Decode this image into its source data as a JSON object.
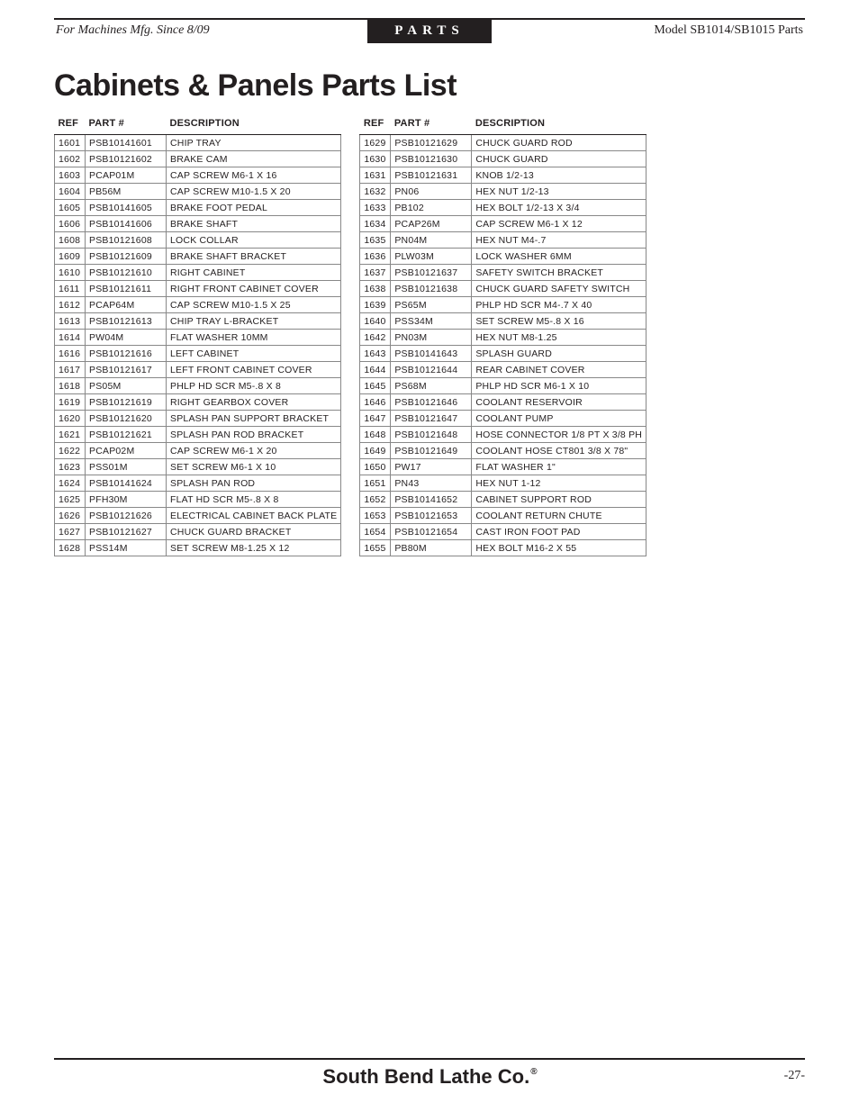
{
  "header": {
    "left": "For Machines Mfg. Since 8/09",
    "center": "PARTS",
    "right": "Model SB1014/SB1015 Parts"
  },
  "title": "Cabinets & Panels Parts List",
  "columns": {
    "ref": "REF",
    "part": "PART #",
    "desc": "DESCRIPTION"
  },
  "left_table": [
    {
      "ref": "1601",
      "part": "PSB10141601",
      "desc": "CHIP TRAY"
    },
    {
      "ref": "1602",
      "part": "PSB10121602",
      "desc": "BRAKE CAM"
    },
    {
      "ref": "1603",
      "part": "PCAP01M",
      "desc": "CAP SCREW M6-1 X 16"
    },
    {
      "ref": "1604",
      "part": "PB56M",
      "desc": "CAP SCREW M10-1.5 X 20"
    },
    {
      "ref": "1605",
      "part": "PSB10141605",
      "desc": "BRAKE FOOT PEDAL"
    },
    {
      "ref": "1606",
      "part": "PSB10141606",
      "desc": "BRAKE SHAFT"
    },
    {
      "ref": "1608",
      "part": "PSB10121608",
      "desc": "LOCK COLLAR"
    },
    {
      "ref": "1609",
      "part": "PSB10121609",
      "desc": "BRAKE SHAFT BRACKET"
    },
    {
      "ref": "1610",
      "part": "PSB10121610",
      "desc": "RIGHT CABINET"
    },
    {
      "ref": "1611",
      "part": "PSB10121611",
      "desc": "RIGHT FRONT CABINET COVER"
    },
    {
      "ref": "1612",
      "part": "PCAP64M",
      "desc": "CAP SCREW M10-1.5 X 25"
    },
    {
      "ref": "1613",
      "part": "PSB10121613",
      "desc": "CHIP TRAY L-BRACKET"
    },
    {
      "ref": "1614",
      "part": "PW04M",
      "desc": "FLAT WASHER 10MM"
    },
    {
      "ref": "1616",
      "part": "PSB10121616",
      "desc": "LEFT CABINET"
    },
    {
      "ref": "1617",
      "part": "PSB10121617",
      "desc": "LEFT FRONT CABINET COVER"
    },
    {
      "ref": "1618",
      "part": "PS05M",
      "desc": "PHLP HD SCR M5-.8 X 8"
    },
    {
      "ref": "1619",
      "part": "PSB10121619",
      "desc": "RIGHT GEARBOX COVER"
    },
    {
      "ref": "1620",
      "part": "PSB10121620",
      "desc": "SPLASH PAN SUPPORT BRACKET"
    },
    {
      "ref": "1621",
      "part": "PSB10121621",
      "desc": "SPLASH PAN ROD BRACKET"
    },
    {
      "ref": "1622",
      "part": "PCAP02M",
      "desc": "CAP SCREW M6-1 X 20"
    },
    {
      "ref": "1623",
      "part": "PSS01M",
      "desc": "SET SCREW M6-1 X 10"
    },
    {
      "ref": "1624",
      "part": "PSB10141624",
      "desc": "SPLASH PAN ROD"
    },
    {
      "ref": "1625",
      "part": "PFH30M",
      "desc": "FLAT HD SCR M5-.8 X 8"
    },
    {
      "ref": "1626",
      "part": "PSB10121626",
      "desc": "ELECTRICAL CABINET BACK PLATE"
    },
    {
      "ref": "1627",
      "part": "PSB10121627",
      "desc": "CHUCK GUARD BRACKET"
    },
    {
      "ref": "1628",
      "part": "PSS14M",
      "desc": "SET SCREW M8-1.25 X 12"
    }
  ],
  "right_table": [
    {
      "ref": "1629",
      "part": "PSB10121629",
      "desc": "CHUCK GUARD ROD"
    },
    {
      "ref": "1630",
      "part": "PSB10121630",
      "desc": "CHUCK GUARD"
    },
    {
      "ref": "1631",
      "part": "PSB10121631",
      "desc": "KNOB 1/2-13"
    },
    {
      "ref": "1632",
      "part": "PN06",
      "desc": "HEX NUT 1/2-13"
    },
    {
      "ref": "1633",
      "part": "PB102",
      "desc": "HEX BOLT 1/2-13 X 3/4"
    },
    {
      "ref": "1634",
      "part": "PCAP26M",
      "desc": "CAP SCREW M6-1 X 12"
    },
    {
      "ref": "1635",
      "part": "PN04M",
      "desc": "HEX NUT M4-.7"
    },
    {
      "ref": "1636",
      "part": "PLW03M",
      "desc": "LOCK WASHER 6MM"
    },
    {
      "ref": "1637",
      "part": "PSB10121637",
      "desc": "SAFETY SWITCH BRACKET"
    },
    {
      "ref": "1638",
      "part": "PSB10121638",
      "desc": "CHUCK GUARD SAFETY SWITCH"
    },
    {
      "ref": "1639",
      "part": "PS65M",
      "desc": "PHLP HD SCR M4-.7 X 40"
    },
    {
      "ref": "1640",
      "part": "PSS34M",
      "desc": "SET SCREW M5-.8 X 16"
    },
    {
      "ref": "1642",
      "part": "PN03M",
      "desc": "HEX NUT M8-1.25"
    },
    {
      "ref": "1643",
      "part": "PSB10141643",
      "desc": "SPLASH GUARD"
    },
    {
      "ref": "1644",
      "part": "PSB10121644",
      "desc": "REAR CABINET COVER"
    },
    {
      "ref": "1645",
      "part": "PS68M",
      "desc": "PHLP HD SCR M6-1 X 10"
    },
    {
      "ref": "1646",
      "part": "PSB10121646",
      "desc": "COOLANT RESERVOIR"
    },
    {
      "ref": "1647",
      "part": "PSB10121647",
      "desc": "COOLANT PUMP"
    },
    {
      "ref": "1648",
      "part": "PSB10121648",
      "desc": "HOSE CONNECTOR 1/8 PT X 3/8 PH"
    },
    {
      "ref": "1649",
      "part": "PSB10121649",
      "desc": "COOLANT HOSE CT801 3/8 X 78\""
    },
    {
      "ref": "1650",
      "part": "PW17",
      "desc": "FLAT WASHER 1\""
    },
    {
      "ref": "1651",
      "part": "PN43",
      "desc": "HEX NUT 1-12"
    },
    {
      "ref": "1652",
      "part": "PSB10141652",
      "desc": "CABINET SUPPORT ROD"
    },
    {
      "ref": "1653",
      "part": "PSB10121653",
      "desc": "COOLANT RETURN CHUTE"
    },
    {
      "ref": "1654",
      "part": "PSB10121654",
      "desc": "CAST IRON FOOT PAD"
    },
    {
      "ref": "1655",
      "part": "PB80M",
      "desc": "HEX BOLT M16-2 X 55"
    }
  ],
  "footer": {
    "brand": "South Bend Lathe Co.",
    "page": "-27-"
  }
}
